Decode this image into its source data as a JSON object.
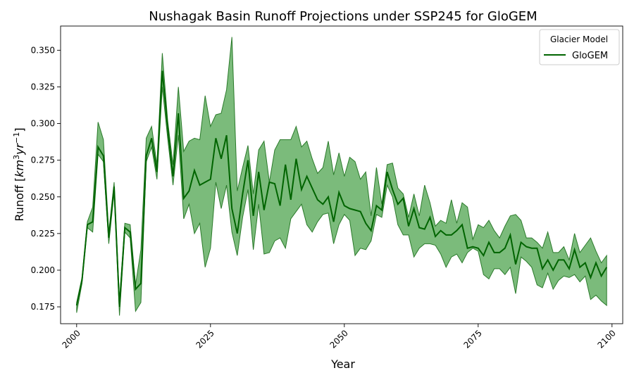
{
  "chart_data": {
    "type": "line",
    "title": "Nushagak Basin Runoff Projections under SSP245 for GloGEM",
    "xlabel": "Year",
    "ylabel_parts": [
      "Runoff [",
      "km",
      "3",
      "yr",
      "−1",
      "]"
    ],
    "xlim": [
      1997,
      2102
    ],
    "ylim": [
      0.1635,
      0.3665
    ],
    "x_ticks": [
      2000,
      2025,
      2050,
      2075,
      2100
    ],
    "x_tick_labels": [
      "2000",
      "2025",
      "2050",
      "2075",
      "2100"
    ],
    "y_ticks": [
      0.175,
      0.2,
      0.225,
      0.25,
      0.275,
      0.3,
      0.325,
      0.35
    ],
    "y_tick_labels": [
      "0.175",
      "0.200",
      "0.225",
      "0.250",
      "0.275",
      "0.300",
      "0.325",
      "0.350"
    ],
    "grid": false,
    "legend": {
      "title": "Glacier Model",
      "placement": "top-right",
      "entries": [
        "GloGEM"
      ]
    },
    "colors": {
      "line": "#006400",
      "band_fill": "#5aaa5a",
      "band_edge": "#2a7a2a"
    },
    "x": [
      2000,
      2001,
      2002,
      2003,
      2004,
      2005,
      2006,
      2007,
      2008,
      2009,
      2010,
      2011,
      2012,
      2013,
      2014,
      2015,
      2016,
      2017,
      2018,
      2019,
      2020,
      2021,
      2022,
      2023,
      2024,
      2025,
      2026,
      2027,
      2028,
      2029,
      2030,
      2031,
      2032,
      2033,
      2034,
      2035,
      2036,
      2037,
      2038,
      2039,
      2040,
      2041,
      2042,
      2043,
      2044,
      2045,
      2046,
      2047,
      2048,
      2049,
      2050,
      2051,
      2052,
      2053,
      2054,
      2055,
      2056,
      2057,
      2058,
      2059,
      2060,
      2061,
      2062,
      2063,
      2064,
      2065,
      2066,
      2067,
      2068,
      2069,
      2070,
      2071,
      2072,
      2073,
      2074,
      2075,
      2076,
      2077,
      2078,
      2079,
      2080,
      2081,
      2082,
      2083,
      2084,
      2085,
      2086,
      2087,
      2088,
      2089,
      2090,
      2091,
      2092,
      2093,
      2094,
      2095,
      2096,
      2097,
      2098,
      2099
    ],
    "series": [
      {
        "name": "GloGEM",
        "mean": [
          0.176,
          0.193,
          0.231,
          0.233,
          0.284,
          0.278,
          0.222,
          0.257,
          0.175,
          0.229,
          0.226,
          0.187,
          0.191,
          0.278,
          0.29,
          0.267,
          0.336,
          0.297,
          0.264,
          0.307,
          0.249,
          0.254,
          0.268,
          0.258,
          0.26,
          0.262,
          0.29,
          0.276,
          0.292,
          0.242,
          0.225,
          0.252,
          0.275,
          0.237,
          0.267,
          0.241,
          0.26,
          0.259,
          0.244,
          0.272,
          0.248,
          0.276,
          0.255,
          0.264,
          0.256,
          0.248,
          0.245,
          0.25,
          0.233,
          0.253,
          0.244,
          0.242,
          0.241,
          0.24,
          0.232,
          0.227,
          0.244,
          0.241,
          0.267,
          0.255,
          0.245,
          0.249,
          0.23,
          0.242,
          0.229,
          0.228,
          0.236,
          0.223,
          0.227,
          0.224,
          0.224,
          0.227,
          0.231,
          0.215,
          0.216,
          0.215,
          0.21,
          0.219,
          0.212,
          0.212,
          0.215,
          0.224,
          0.204,
          0.219,
          0.216,
          0.215,
          0.215,
          0.201,
          0.207,
          0.2,
          0.207,
          0.207,
          0.201,
          0.214,
          0.202,
          0.205,
          0.195,
          0.205,
          0.196,
          0.202
        ],
        "low": [
          0.171,
          0.191,
          0.229,
          0.226,
          0.279,
          0.274,
          0.218,
          0.253,
          0.169,
          0.226,
          0.222,
          0.172,
          0.178,
          0.274,
          0.284,
          0.262,
          0.325,
          0.29,
          0.258,
          0.292,
          0.235,
          0.245,
          0.225,
          0.232,
          0.202,
          0.215,
          0.26,
          0.242,
          0.258,
          0.226,
          0.21,
          0.236,
          0.255,
          0.214,
          0.245,
          0.211,
          0.212,
          0.22,
          0.222,
          0.215,
          0.235,
          0.24,
          0.245,
          0.231,
          0.226,
          0.233,
          0.238,
          0.239,
          0.218,
          0.231,
          0.238,
          0.234,
          0.21,
          0.215,
          0.214,
          0.22,
          0.238,
          0.236,
          0.258,
          0.25,
          0.231,
          0.224,
          0.224,
          0.209,
          0.215,
          0.218,
          0.218,
          0.217,
          0.211,
          0.202,
          0.209,
          0.211,
          0.205,
          0.212,
          0.215,
          0.213,
          0.197,
          0.194,
          0.201,
          0.201,
          0.197,
          0.202,
          0.184,
          0.209,
          0.206,
          0.202,
          0.19,
          0.188,
          0.198,
          0.187,
          0.193,
          0.196,
          0.195,
          0.197,
          0.192,
          0.196,
          0.18,
          0.183,
          0.179,
          0.176
        ],
        "high": [
          0.178,
          0.195,
          0.233,
          0.243,
          0.301,
          0.289,
          0.226,
          0.26,
          0.18,
          0.232,
          0.231,
          0.19,
          0.214,
          0.29,
          0.298,
          0.272,
          0.348,
          0.302,
          0.272,
          0.325,
          0.281,
          0.288,
          0.29,
          0.289,
          0.319,
          0.298,
          0.306,
          0.307,
          0.323,
          0.359,
          0.254,
          0.27,
          0.285,
          0.252,
          0.282,
          0.288,
          0.26,
          0.282,
          0.289,
          0.289,
          0.289,
          0.298,
          0.284,
          0.288,
          0.276,
          0.266,
          0.27,
          0.288,
          0.265,
          0.28,
          0.264,
          0.277,
          0.274,
          0.262,
          0.267,
          0.237,
          0.27,
          0.245,
          0.272,
          0.273,
          0.256,
          0.252,
          0.236,
          0.252,
          0.237,
          0.258,
          0.246,
          0.23,
          0.234,
          0.232,
          0.248,
          0.232,
          0.246,
          0.243,
          0.221,
          0.231,
          0.229,
          0.234,
          0.227,
          0.222,
          0.23,
          0.237,
          0.238,
          0.234,
          0.222,
          0.222,
          0.219,
          0.215,
          0.226,
          0.212,
          0.212,
          0.216,
          0.207,
          0.225,
          0.212,
          0.217,
          0.222,
          0.213,
          0.205,
          0.21
        ]
      }
    ]
  }
}
